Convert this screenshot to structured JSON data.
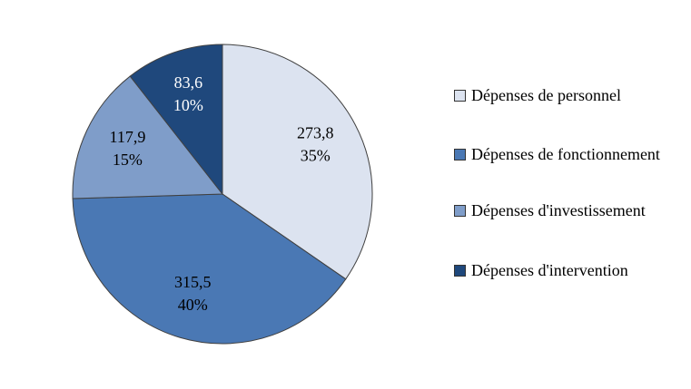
{
  "chart_data": {
    "type": "pie",
    "categories": [
      "Dépenses de personnel",
      "Dépenses de fonctionnement",
      "Dépenses d'investissement",
      "Dépenses d'intervention"
    ],
    "values": [
      273.8,
      315.5,
      117.9,
      83.6
    ],
    "value_labels": [
      "273,8",
      "315,5",
      "117,9",
      "83,6"
    ],
    "percents": [
      35,
      40,
      15,
      10
    ],
    "percent_labels": [
      "35%",
      "40%",
      "15%",
      "10%"
    ],
    "colors": [
      "#dce3f0",
      "#4a78b4",
      "#7f9dc9",
      "#1f487c"
    ],
    "label_colors": [
      "#000000",
      "#000000",
      "#000000",
      "#ffffff"
    ],
    "legend": "right"
  }
}
